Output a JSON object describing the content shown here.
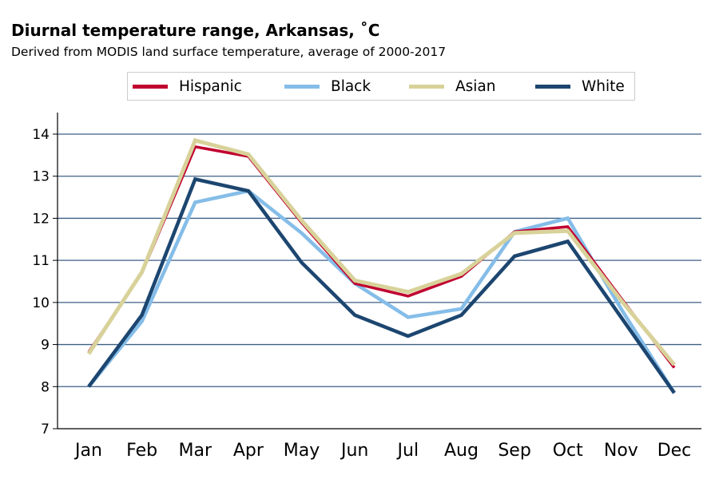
{
  "chart_data": {
    "type": "line",
    "title": "Diurnal temperature range, Arkansas, ˚C",
    "subtitle": "Derived from MODIS land surface temperature, average of 2000-2017",
    "xlabel": "",
    "ylabel": "",
    "categories": [
      "Jan",
      "Feb",
      "Mar",
      "Apr",
      "May",
      "Jun",
      "Jul",
      "Aug",
      "Sep",
      "Oct",
      "Nov",
      "Dec"
    ],
    "ylim": [
      7,
      14
    ],
    "yticks": [
      7,
      8,
      9,
      10,
      11,
      12,
      13,
      14
    ],
    "grid": true,
    "legend_position": "top",
    "series": [
      {
        "name": "Hispanic",
        "color": "#c0002f",
        "values": [
          8.82,
          10.7,
          13.7,
          13.47,
          11.9,
          10.45,
          10.15,
          10.62,
          11.68,
          11.8,
          10.1,
          8.45
        ]
      },
      {
        "name": "Black",
        "color": "#85bde8",
        "values": [
          8.0,
          9.55,
          12.38,
          12.65,
          11.65,
          10.45,
          9.65,
          9.85,
          11.68,
          12.0,
          9.85,
          7.85
        ]
      },
      {
        "name": "Asian",
        "color": "#d8d29a",
        "values": [
          8.78,
          10.72,
          13.85,
          13.52,
          11.95,
          10.52,
          10.25,
          10.68,
          11.65,
          11.7,
          10.05,
          8.52
        ]
      },
      {
        "name": "White",
        "color": "#1c4670",
        "values": [
          8.0,
          9.7,
          12.93,
          12.65,
          10.95,
          9.7,
          9.2,
          9.7,
          11.1,
          11.45,
          9.65,
          7.85
        ]
      }
    ]
  }
}
